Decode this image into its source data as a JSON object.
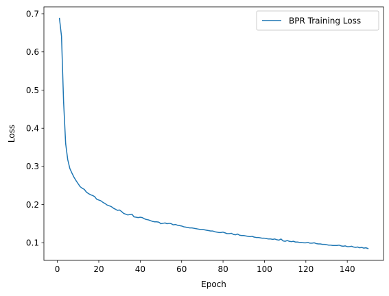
{
  "chart_data": {
    "type": "line",
    "title": "",
    "xlabel": "Epoch",
    "ylabel": "Loss",
    "xlim": [
      -6.5,
      157.5
    ],
    "ylim": [
      0.054,
      0.718
    ],
    "xticks": [
      0,
      20,
      40,
      60,
      80,
      100,
      120,
      140
    ],
    "yticks": [
      0.1,
      0.2,
      0.3,
      0.4,
      0.5,
      0.6,
      0.7
    ],
    "xtick_labels": [
      "0",
      "20",
      "40",
      "60",
      "80",
      "100",
      "120",
      "140"
    ],
    "ytick_labels": [
      "0.1",
      "0.2",
      "0.3",
      "0.4",
      "0.5",
      "0.6",
      "0.7"
    ],
    "grid": false,
    "legend": {
      "position": "top-right"
    },
    "series": [
      {
        "name": "BPR Training Loss",
        "color": "#1f77b4",
        "x": [
          1,
          2,
          3,
          4,
          5,
          6,
          7,
          8,
          9,
          10,
          11,
          12,
          13,
          14,
          15,
          16,
          17,
          18,
          19,
          20,
          21,
          22,
          23,
          24,
          25,
          26,
          27,
          28,
          29,
          30,
          31,
          32,
          33,
          34,
          35,
          36,
          37,
          38,
          39,
          40,
          41,
          42,
          43,
          44,
          45,
          46,
          47,
          48,
          49,
          50,
          51,
          52,
          53,
          54,
          55,
          56,
          57,
          58,
          59,
          60,
          61,
          62,
          63,
          64,
          65,
          66,
          67,
          68,
          69,
          70,
          71,
          72,
          73,
          74,
          75,
          76,
          77,
          78,
          79,
          80,
          81,
          82,
          83,
          84,
          85,
          86,
          87,
          88,
          89,
          90,
          91,
          92,
          93,
          94,
          95,
          96,
          97,
          98,
          99,
          100,
          101,
          102,
          103,
          104,
          105,
          106,
          107,
          108,
          109,
          110,
          111,
          112,
          113,
          114,
          115,
          116,
          117,
          118,
          119,
          120,
          121,
          122,
          123,
          124,
          125,
          126,
          127,
          128,
          129,
          130,
          131,
          132,
          133,
          134,
          135,
          136,
          137,
          138,
          139,
          140,
          141,
          142,
          143,
          144,
          145,
          146,
          147,
          148,
          149,
          150
        ],
        "y": [
          0.688,
          0.641,
          0.47,
          0.36,
          0.318,
          0.295,
          0.283,
          0.272,
          0.263,
          0.255,
          0.247,
          0.243,
          0.24,
          0.233,
          0.229,
          0.226,
          0.224,
          0.221,
          0.214,
          0.212,
          0.21,
          0.206,
          0.203,
          0.199,
          0.197,
          0.195,
          0.191,
          0.188,
          0.185,
          0.186,
          0.182,
          0.177,
          0.175,
          0.173,
          0.174,
          0.175,
          0.168,
          0.167,
          0.166,
          0.167,
          0.166,
          0.163,
          0.161,
          0.16,
          0.158,
          0.156,
          0.155,
          0.155,
          0.154,
          0.15,
          0.151,
          0.152,
          0.15,
          0.151,
          0.15,
          0.147,
          0.148,
          0.146,
          0.145,
          0.144,
          0.142,
          0.141,
          0.14,
          0.139,
          0.139,
          0.138,
          0.137,
          0.136,
          0.135,
          0.135,
          0.134,
          0.133,
          0.132,
          0.131,
          0.131,
          0.129,
          0.128,
          0.127,
          0.127,
          0.128,
          0.126,
          0.124,
          0.124,
          0.125,
          0.122,
          0.121,
          0.123,
          0.12,
          0.119,
          0.119,
          0.118,
          0.117,
          0.116,
          0.117,
          0.115,
          0.114,
          0.114,
          0.113,
          0.112,
          0.112,
          0.111,
          0.11,
          0.11,
          0.109,
          0.11,
          0.108,
          0.107,
          0.11,
          0.105,
          0.104,
          0.106,
          0.104,
          0.103,
          0.104,
          0.102,
          0.102,
          0.101,
          0.101,
          0.1,
          0.1,
          0.101,
          0.099,
          0.099,
          0.1,
          0.098,
          0.097,
          0.097,
          0.096,
          0.096,
          0.095,
          0.094,
          0.094,
          0.093,
          0.093,
          0.093,
          0.094,
          0.092,
          0.091,
          0.092,
          0.09,
          0.09,
          0.091,
          0.089,
          0.088,
          0.089,
          0.087,
          0.088,
          0.086,
          0.087,
          0.085
        ]
      }
    ]
  }
}
